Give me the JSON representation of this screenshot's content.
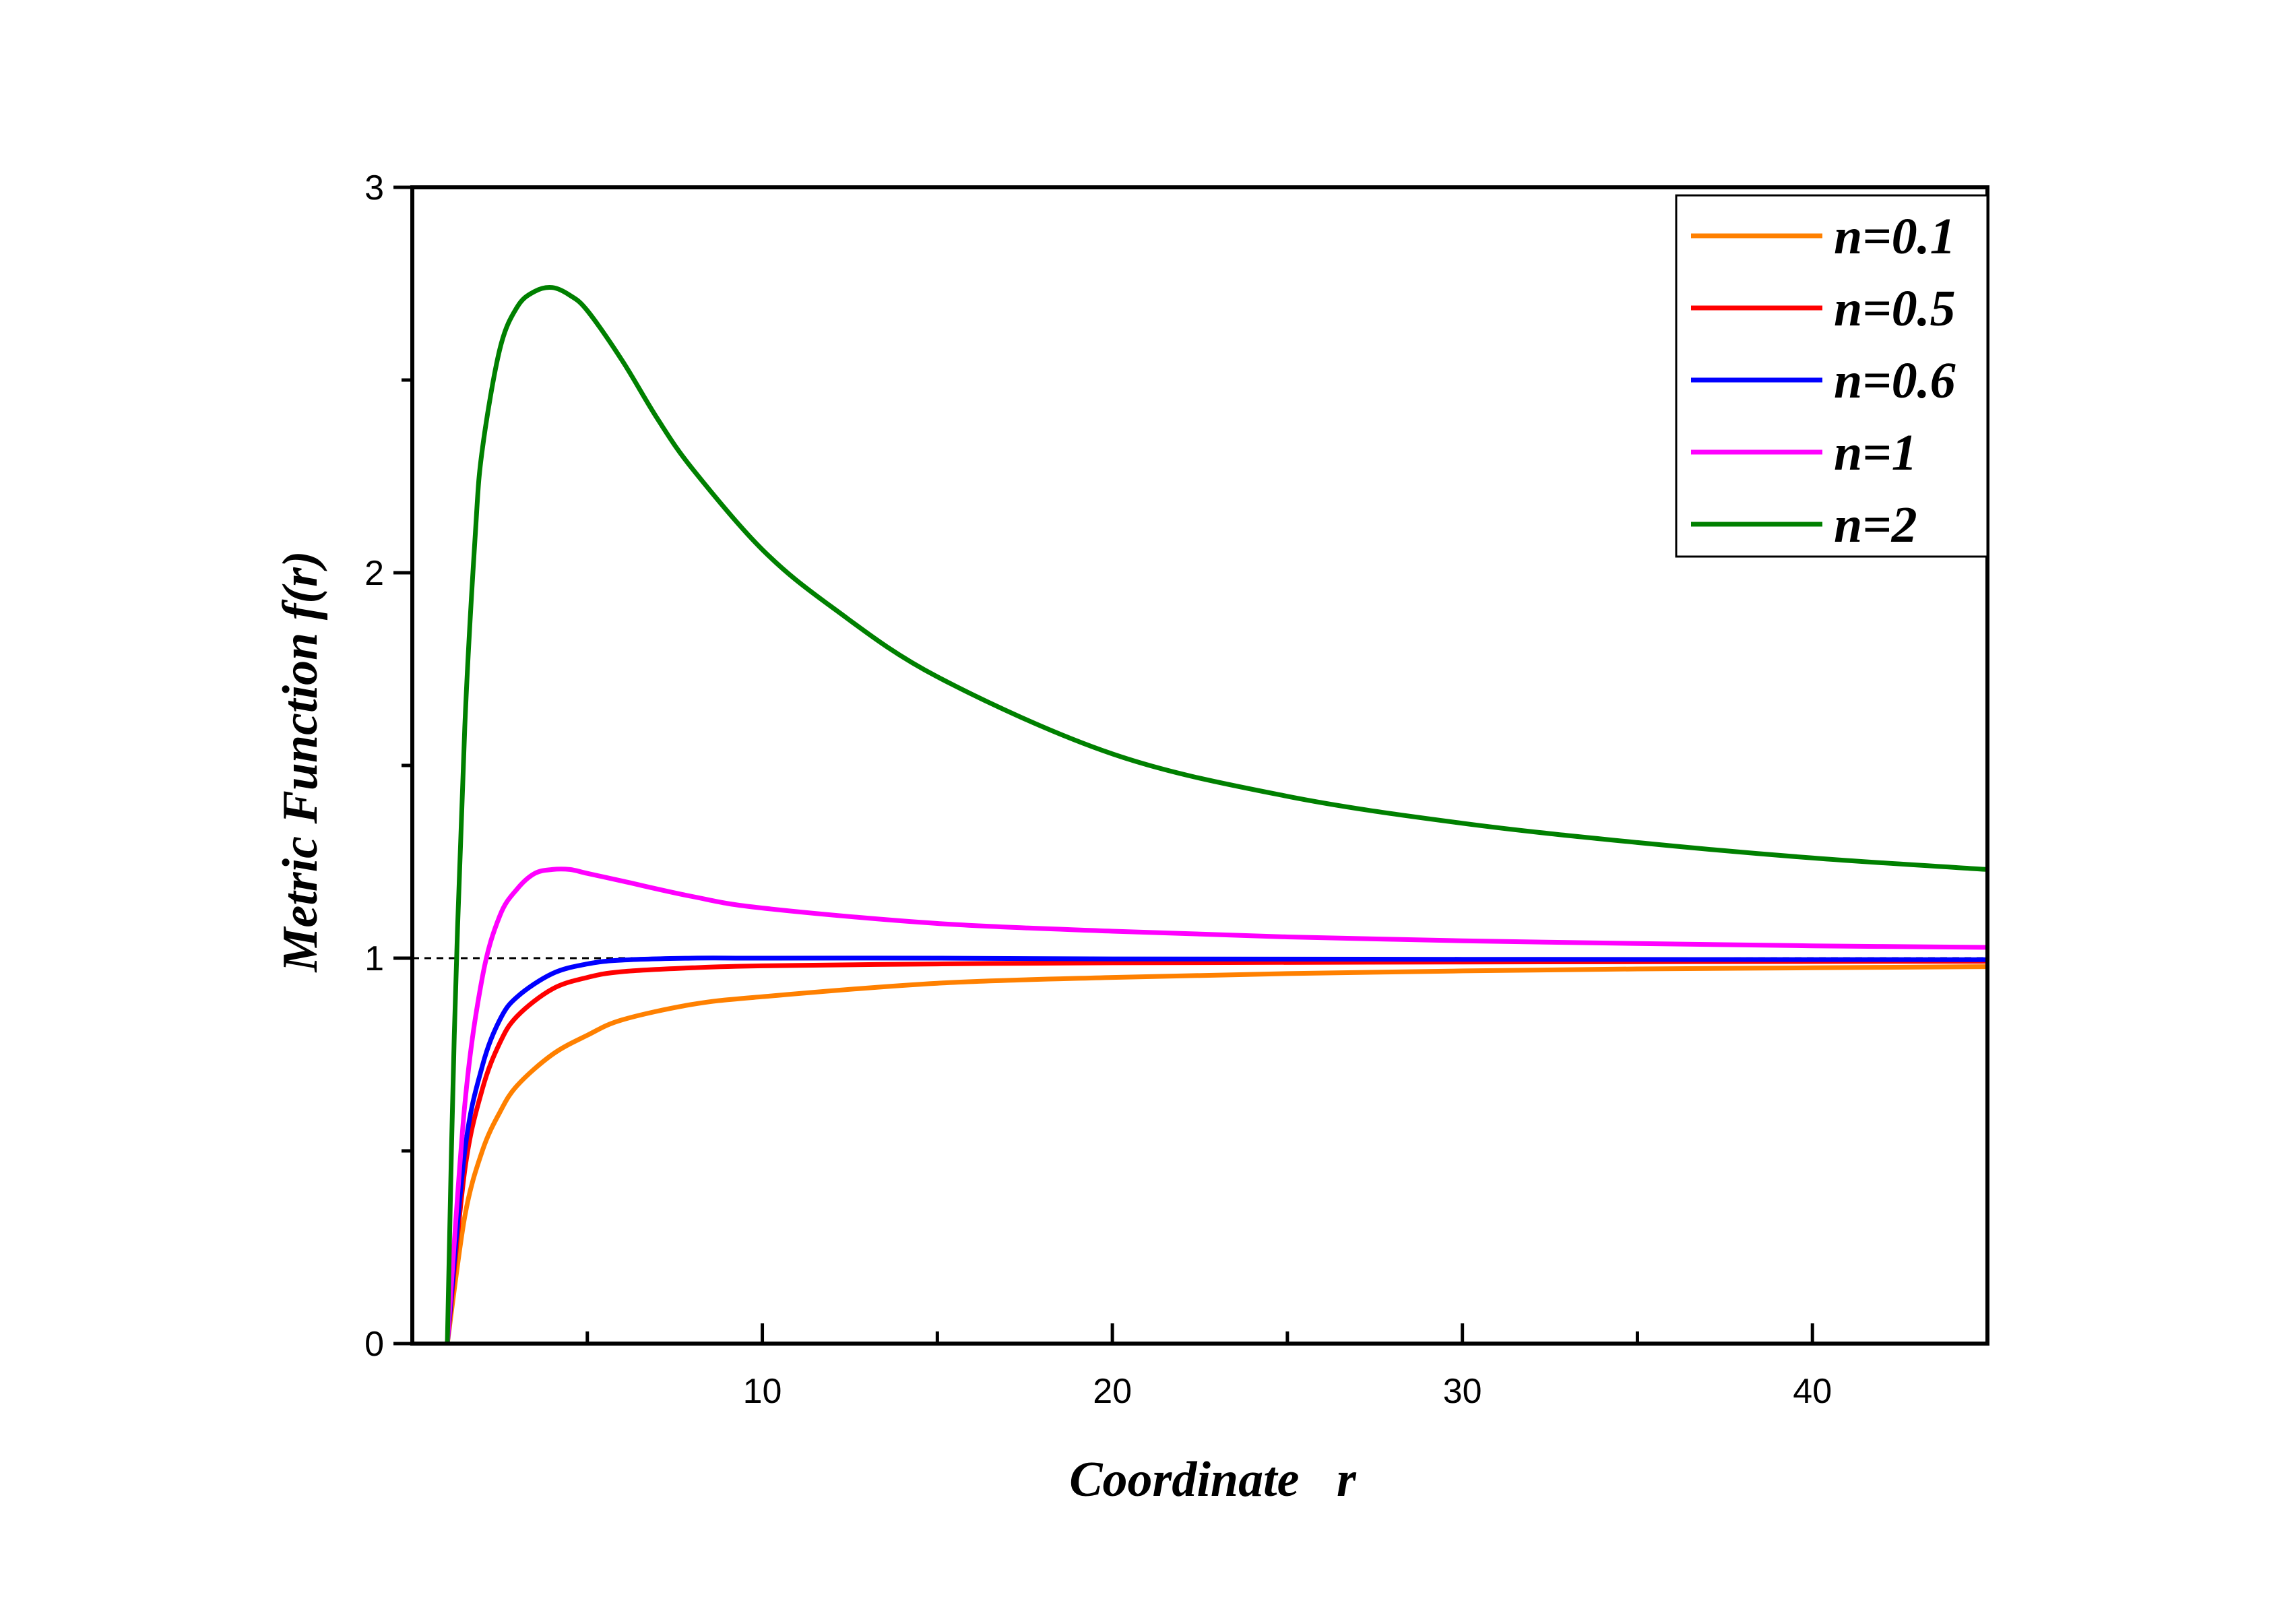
{
  "chart_data": {
    "type": "line",
    "xlabel": "Coordinate   r",
    "ylabel": "Metric Function f(r)",
    "xlim": [
      0,
      45
    ],
    "ylim": [
      0,
      3
    ],
    "xticks": [
      10,
      20,
      30,
      40
    ],
    "yticks": [
      0,
      1,
      2,
      3
    ],
    "x_minor_ticks": [
      5,
      15,
      25,
      35
    ],
    "y_minor_ticks": [
      0.5,
      1.5,
      2.5
    ],
    "reference_line": {
      "y": 1,
      "style": "dashed"
    },
    "legend_position": "top-right",
    "grid": false,
    "series": [
      {
        "name": "n=0.1",
        "color": "#FF8000",
        "x": [
          1,
          1.5,
          2,
          2.5,
          3,
          4,
          5,
          6,
          8,
          10,
          15,
          20,
          25,
          30,
          35,
          40,
          45
        ],
        "y": [
          0,
          0.33,
          0.5,
          0.6,
          0.67,
          0.75,
          0.8,
          0.84,
          0.88,
          0.9,
          0.935,
          0.95,
          0.96,
          0.967,
          0.972,
          0.975,
          0.978
        ]
      },
      {
        "name": "n=0.5",
        "color": "#FF0000",
        "x": [
          1,
          1.5,
          2,
          2.5,
          3,
          4,
          5,
          6,
          8,
          10,
          15,
          20,
          30,
          45
        ],
        "y": [
          0,
          0.45,
          0.66,
          0.78,
          0.85,
          0.92,
          0.95,
          0.965,
          0.975,
          0.98,
          0.985,
          0.988,
          0.99,
          0.992
        ]
      },
      {
        "name": "n=0.6",
        "color": "#0000FF",
        "x": [
          1,
          1.5,
          2,
          2.5,
          3,
          4,
          5,
          6,
          8,
          10,
          15,
          20,
          30,
          45
        ],
        "y": [
          0,
          0.5,
          0.72,
          0.84,
          0.9,
          0.96,
          0.985,
          0.995,
          1.0,
          1.0,
          1.0,
          0.998,
          0.997,
          0.996
        ]
      },
      {
        "name": "n=1",
        "color": "#FF00FF",
        "x": [
          1,
          1.5,
          2,
          2.5,
          3,
          3.5,
          4,
          4.5,
          5,
          6,
          8,
          10,
          15,
          20,
          25,
          30,
          35,
          40,
          45
        ],
        "y": [
          0,
          0.62,
          0.95,
          1.11,
          1.18,
          1.22,
          1.23,
          1.23,
          1.22,
          1.2,
          1.16,
          1.13,
          1.09,
          1.07,
          1.055,
          1.045,
          1.038,
          1.032,
          1.028
        ]
      },
      {
        "name": "n=2",
        "color": "#008000",
        "x": [
          1,
          1.2,
          1.5,
          1.8,
          2,
          2.5,
          3,
          3.5,
          4,
          4.5,
          5,
          6,
          7,
          8,
          10,
          12,
          15,
          20,
          25,
          30,
          35,
          40,
          45
        ],
        "y": [
          0,
          0.8,
          1.6,
          2.1,
          2.32,
          2.58,
          2.69,
          2.73,
          2.74,
          2.72,
          2.68,
          2.55,
          2.4,
          2.27,
          2.06,
          1.91,
          1.73,
          1.53,
          1.42,
          1.35,
          1.3,
          1.26,
          1.23
        ]
      }
    ]
  }
}
